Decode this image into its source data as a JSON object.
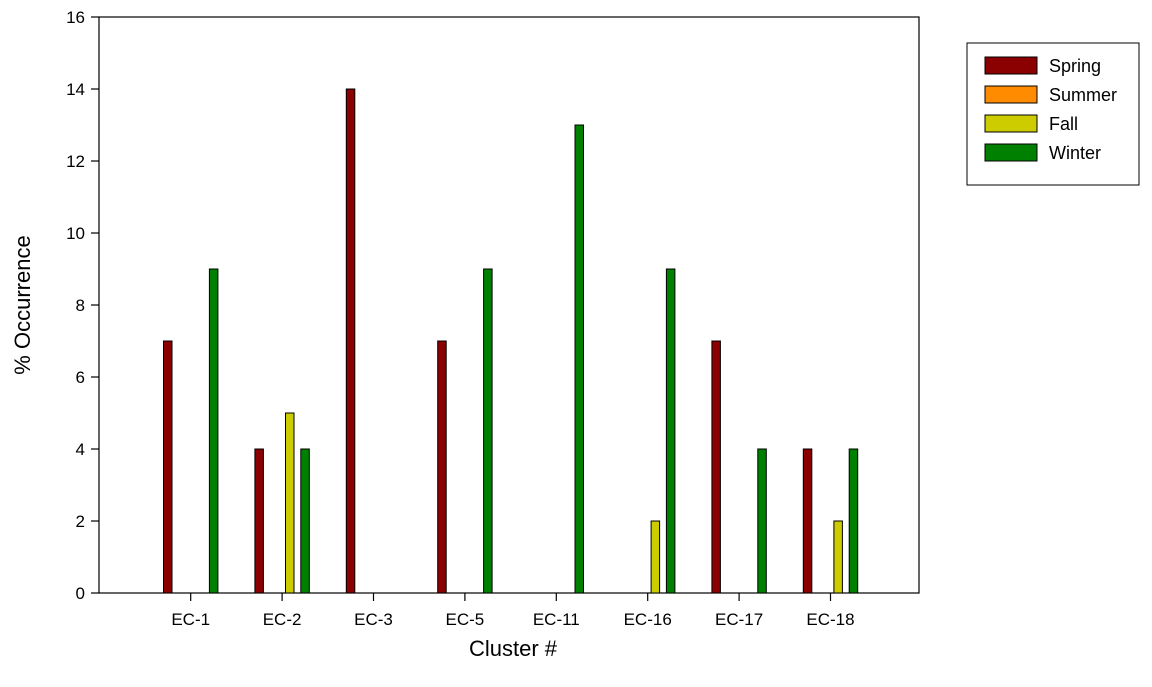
{
  "chart_data": {
    "type": "bar",
    "title": "",
    "xlabel": "Cluster #",
    "ylabel": "% Occurrence",
    "categories": [
      "EC-1",
      "EC-2",
      "EC-3",
      "EC-5",
      "EC-11",
      "EC-16",
      "EC-17",
      "EC-18"
    ],
    "series": [
      {
        "name": "Spring",
        "color": "#8b0000",
        "values": [
          7,
          4,
          14,
          7,
          0,
          0,
          7,
          4
        ]
      },
      {
        "name": "Summer",
        "color": "#ff8c00",
        "values": [
          0,
          0,
          0,
          0,
          0,
          0,
          0,
          0
        ]
      },
      {
        "name": "Fall",
        "color": "#cccc00",
        "values": [
          0,
          5,
          0,
          0,
          0,
          2,
          0,
          2
        ]
      },
      {
        "name": "Winter",
        "color": "#008000",
        "values": [
          9,
          4,
          0,
          9,
          13,
          9,
          4,
          4
        ]
      }
    ],
    "ylim": [
      0,
      16
    ],
    "yticks": [
      0,
      2,
      4,
      6,
      8,
      10,
      12,
      14,
      16
    ],
    "grid": false,
    "legend_position": "top-right-outside"
  }
}
